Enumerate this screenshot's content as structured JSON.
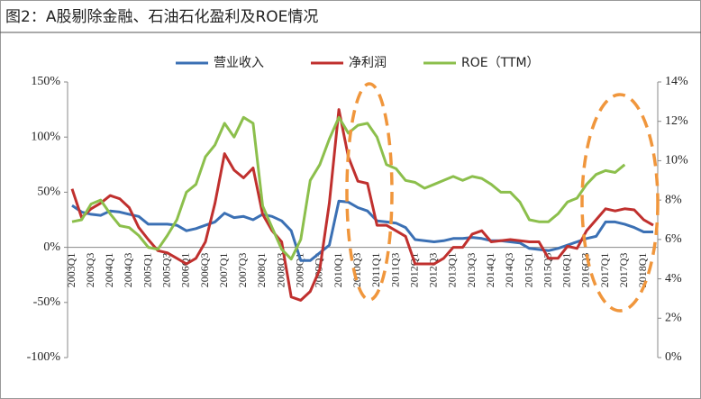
{
  "chart_data": {
    "type": "line",
    "title": "图2：A股剔除金融、石油石化盈利及ROE情况",
    "categories": [
      "2003Q1",
      null,
      "2003Q3",
      null,
      "2004Q1",
      null,
      "2004Q3",
      null,
      "2005Q1",
      null,
      "2005Q3",
      null,
      "2006Q1",
      null,
      "2006Q3",
      null,
      "2007Q1",
      null,
      "2007Q3",
      null,
      "2008Q1",
      null,
      "2008Q3",
      null,
      "2009Q1",
      null,
      "2009Q3",
      null,
      "2010Q1",
      null,
      "2010Q3",
      null,
      "2011Q1",
      null,
      "2011Q3",
      null,
      "2012Q1",
      null,
      "2012Q3",
      null,
      "2013Q1",
      null,
      "2013Q3",
      null,
      "2014Q1",
      null,
      "2014Q3",
      null,
      "2015Q1",
      null,
      "2015Q3",
      null,
      "2016Q1",
      null,
      "2016Q3",
      null,
      "2017Q1",
      null,
      "2017Q3",
      null,
      "2018Q1",
      null
    ],
    "series": [
      {
        "name": "营业收入",
        "color": "#3b70b4",
        "values": [
          38,
          32,
          30,
          29,
          33,
          32,
          30,
          28,
          21,
          21,
          21,
          20,
          15,
          17,
          20,
          23,
          31,
          27,
          28,
          25,
          30,
          28,
          24,
          15,
          -12,
          -12,
          -5,
          2,
          42,
          41,
          36,
          33,
          24,
          23,
          22,
          18,
          7,
          6,
          5,
          6,
          8,
          8,
          9,
          8,
          6,
          6,
          5,
          4,
          -1,
          -2,
          -3,
          -1,
          2,
          5,
          8,
          10,
          23,
          23,
          21,
          18,
          14,
          14
        ]
      },
      {
        "name": "净利润",
        "color": "#c0302e",
        "values": [
          53,
          27,
          35,
          40,
          47,
          44,
          36,
          18,
          7,
          -3,
          -5,
          -10,
          -15,
          -10,
          5,
          40,
          85,
          70,
          63,
          72,
          30,
          15,
          5,
          -45,
          -48,
          -40,
          -20,
          40,
          125,
          82,
          60,
          58,
          20,
          20,
          15,
          10,
          -15,
          -15,
          -15,
          -10,
          0,
          0,
          12,
          15,
          5,
          6,
          7,
          6,
          5,
          5,
          -10,
          -10,
          1,
          -1,
          15,
          25,
          35,
          33,
          35,
          34,
          25,
          20
        ]
      },
      {
        "name": "ROE（TTM）",
        "color": "#8cbf4c",
        "axis": "y2",
        "values": [
          6.9,
          7.0,
          7.8,
          8.0,
          7.3,
          6.7,
          6.6,
          6.2,
          5.6,
          5.5,
          6.2,
          7.0,
          8.4,
          8.8,
          10.2,
          10.8,
          11.9,
          11.2,
          12.2,
          11.9,
          7.7,
          6.6,
          5.5,
          5.0,
          6.0,
          9.0,
          9.8,
          11.1,
          12.2,
          11.4,
          11.8,
          11.9,
          11.2,
          9.8,
          9.6,
          9.0,
          8.9,
          8.6,
          8.8,
          9.0,
          9.2,
          9.0,
          9.2,
          9.1,
          8.8,
          8.4,
          8.4,
          7.9,
          7.0,
          6.9,
          6.9,
          7.3,
          7.9,
          8.1,
          8.8,
          9.3,
          9.5,
          9.4,
          9.8,
          null,
          null,
          null
        ]
      }
    ],
    "ylim": [
      -100,
      150
    ],
    "yticks": [
      {
        "value": -100,
        "label": "-100%"
      },
      {
        "value": -50,
        "label": "-50%"
      },
      {
        "value": 0,
        "label": "0%"
      },
      {
        "value": 50,
        "label": "50%"
      },
      {
        "value": 100,
        "label": "100%"
      },
      {
        "value": 150,
        "label": "150%"
      }
    ],
    "y2lim": [
      0,
      14
    ],
    "y2ticks": [
      {
        "value": 0,
        "label": "0%"
      },
      {
        "value": 2,
        "label": "2%"
      },
      {
        "value": 4,
        "label": "4%"
      },
      {
        "value": 6,
        "label": "6%"
      },
      {
        "value": 8,
        "label": "8%"
      },
      {
        "value": 10,
        "label": "10%"
      },
      {
        "value": 12,
        "label": "12%"
      },
      {
        "value": 14,
        "label": "14%"
      }
    ],
    "legend": "top"
  }
}
